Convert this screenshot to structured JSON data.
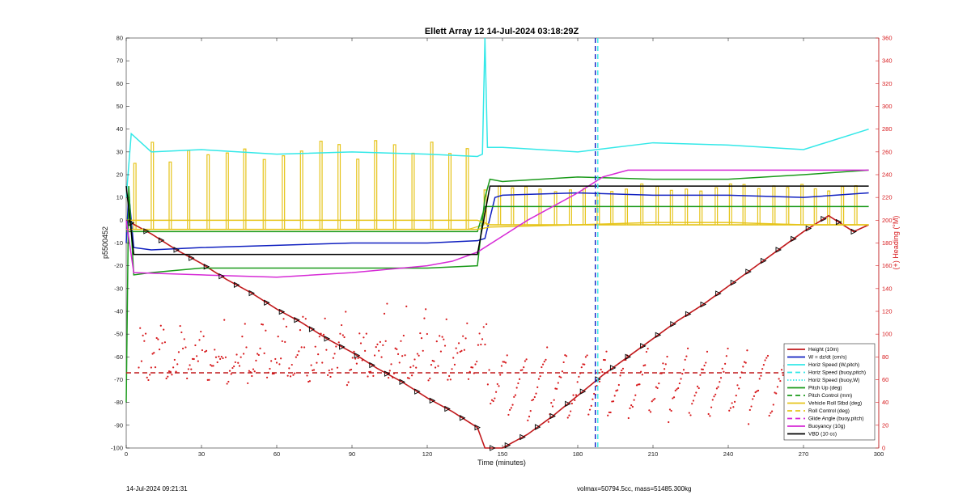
{
  "chart_data": {
    "type": "line",
    "title": "Ellett Array 12 14-Jul-2024 03:18:29Z",
    "xlabel": "Time (minutes)",
    "ylabel": "p5500452",
    "ylabel_right": "(+) Heading (°M)",
    "xlim": [
      0,
      300
    ],
    "ylim": [
      -100,
      80
    ],
    "ylim_right": [
      0,
      360
    ],
    "x_ticks": [
      "0",
      "30",
      "60",
      "90",
      "120",
      "150",
      "180",
      "210",
      "240",
      "270",
      "300"
    ],
    "y_ticks": [
      "-100",
      "-90",
      "-80",
      "-70",
      "-60",
      "-50",
      "-40",
      "-30",
      "-20",
      "-10",
      "0",
      "10",
      "20",
      "30",
      "40",
      "50",
      "60",
      "70",
      "80"
    ],
    "y_ticks_right": [
      "0",
      "20",
      "40",
      "60",
      "80",
      "100",
      "120",
      "140",
      "160",
      "180",
      "200",
      "220",
      "240",
      "260",
      "280",
      "300",
      "320",
      "340",
      "360"
    ],
    "grid": false,
    "legend_position": "bottom-right",
    "legend": [
      {
        "label": "Height (10m)",
        "color": "#c0181b",
        "style": "solid"
      },
      {
        "label": "W = dz/dt (cm/s)",
        "color": "#1020c0",
        "style": "solid"
      },
      {
        "label": "Horiz Speed (W,pitch)",
        "color": "#33e8e8",
        "style": "solid"
      },
      {
        "label": "Horiz Speed (buoy,pitch)",
        "color": "#33e8e8",
        "style": "dashed"
      },
      {
        "label": "Horiz Speed (buoy,W)",
        "color": "#33e8e8",
        "style": "dotted"
      },
      {
        "label": "Pitch Up (deg)",
        "color": "#1a9a1a",
        "style": "solid"
      },
      {
        "label": "Pitch Control (mm)",
        "color": "#1a9a1a",
        "style": "dashed"
      },
      {
        "label": "Vehicle Roll Stbd (deg)",
        "color": "#e6c41a",
        "style": "solid"
      },
      {
        "label": "Roll Control (deg)",
        "color": "#e6c41a",
        "style": "dashed"
      },
      {
        "label": "Glide Angle (buoy,pitch)",
        "color": "#d62ad6",
        "style": "dashed"
      },
      {
        "label": "Buoyancy (10g)",
        "color": "#d62ad6",
        "style": "solid"
      },
      {
        "label": "VBD (10 cc)",
        "color": "#000000",
        "style": "solid"
      }
    ],
    "series": [
      {
        "name": "Height (10m)",
        "color": "#c0181b",
        "x": [
          0,
          10,
          20,
          30,
          40,
          50,
          60,
          70,
          80,
          90,
          100,
          110,
          120,
          130,
          140,
          143,
          150,
          160,
          170,
          180,
          190,
          200,
          210,
          220,
          230,
          240,
          250,
          260,
          270,
          280,
          290,
          296
        ],
        "y": [
          0,
          -6,
          -13,
          -19,
          -26,
          -32,
          -39,
          -45,
          -52,
          -58,
          -65,
          -71,
          -78,
          -84,
          -91,
          -100,
          -100,
          -94,
          -86,
          -77,
          -68,
          -60,
          -52,
          -44,
          -37,
          -29,
          -21,
          -13,
          -5,
          2,
          -5,
          -2
        ]
      },
      {
        "name": "W = dz/dt (cm/s)",
        "color": "#1020c0",
        "x": [
          0,
          1,
          3,
          10,
          30,
          60,
          90,
          120,
          140,
          143,
          147,
          150,
          180,
          210,
          240,
          270,
          296
        ],
        "y": [
          -10,
          12,
          -12,
          -13,
          -12,
          -11,
          -10,
          -10,
          -9,
          -8,
          10,
          11,
          12,
          11,
          11,
          10,
          12
        ]
      },
      {
        "name": "Horiz Speed (W,pitch)",
        "color": "#33e8e8",
        "x": [
          0,
          2,
          10,
          30,
          60,
          90,
          120,
          140,
          142,
          143,
          144,
          150,
          180,
          210,
          240,
          270,
          296
        ],
        "y": [
          10,
          38,
          30,
          31,
          29,
          30,
          29,
          28,
          29,
          80,
          32,
          32,
          30,
          34,
          33,
          31,
          40
        ]
      },
      {
        "name": "Pitch Up (deg)",
        "color": "#1a9a1a",
        "x": [
          0,
          1,
          3,
          10,
          30,
          60,
          90,
          120,
          140,
          143,
          145,
          150,
          180,
          210,
          240,
          270,
          296
        ],
        "y": [
          -80,
          15,
          -24,
          -23,
          -21,
          -21,
          -21,
          -21,
          -20,
          10,
          18,
          17,
          19,
          18,
          18,
          20,
          22
        ]
      },
      {
        "name": "Pitch Control (mm)",
        "color": "#1a9a1a",
        "x": [
          0,
          3,
          140,
          143,
          144,
          296
        ],
        "y": [
          -5,
          -5,
          -5,
          6,
          6,
          6
        ]
      },
      {
        "name": "Vehicle Roll Stbd (deg)",
        "color": "#e6c41a",
        "x": [
          0,
          30,
          60,
          90,
          120,
          140,
          145,
          180,
          210,
          240,
          270,
          296
        ],
        "y": [
          -4,
          -4,
          -4,
          -4,
          -4,
          -4,
          -3,
          -2,
          -1,
          -1,
          -2,
          -2
        ]
      },
      {
        "name": "Roll Control (deg)",
        "color": "#e6c41a",
        "x": [
          0,
          30,
          60,
          90,
          120,
          140,
          145,
          180,
          210,
          240,
          270,
          296
        ],
        "y": [
          0,
          0,
          0,
          0,
          0,
          0,
          -2,
          -2,
          -2,
          -2,
          -2,
          -2
        ]
      },
      {
        "name": "Glide Angle (buoy,pitch)",
        "color": "#d62ad6",
        "x": [
          0,
          3,
          30,
          60,
          90,
          120,
          130,
          140,
          160,
          180,
          190,
          200,
          296
        ],
        "y": [
          0,
          -23,
          -24,
          -25,
          -23,
          -20,
          -18,
          -14,
          0,
          12,
          19,
          22,
          22
        ]
      },
      {
        "name": "VBD (10 cc)",
        "color": "#000000",
        "x": [
          0,
          3,
          60,
          140,
          145,
          296
        ],
        "y": [
          15,
          -15,
          -15,
          -15,
          15,
          15
        ]
      },
      {
        "name": "Heading reference",
        "color": "#c0181b",
        "style": "dashed",
        "x": [
          0,
          296
        ],
        "y_right": [
          66,
          66
        ]
      }
    ],
    "markers": [
      {
        "color": "#33e8e8",
        "x": 188,
        "style": "dashed-vertical"
      },
      {
        "color": "#1020c0",
        "x": 187,
        "style": "dashed-vertical"
      }
    ]
  },
  "footer": {
    "left": "14-Jul-2024 09:21:31",
    "right": "volmax=50794.5cc, mass=51485.300kg"
  }
}
